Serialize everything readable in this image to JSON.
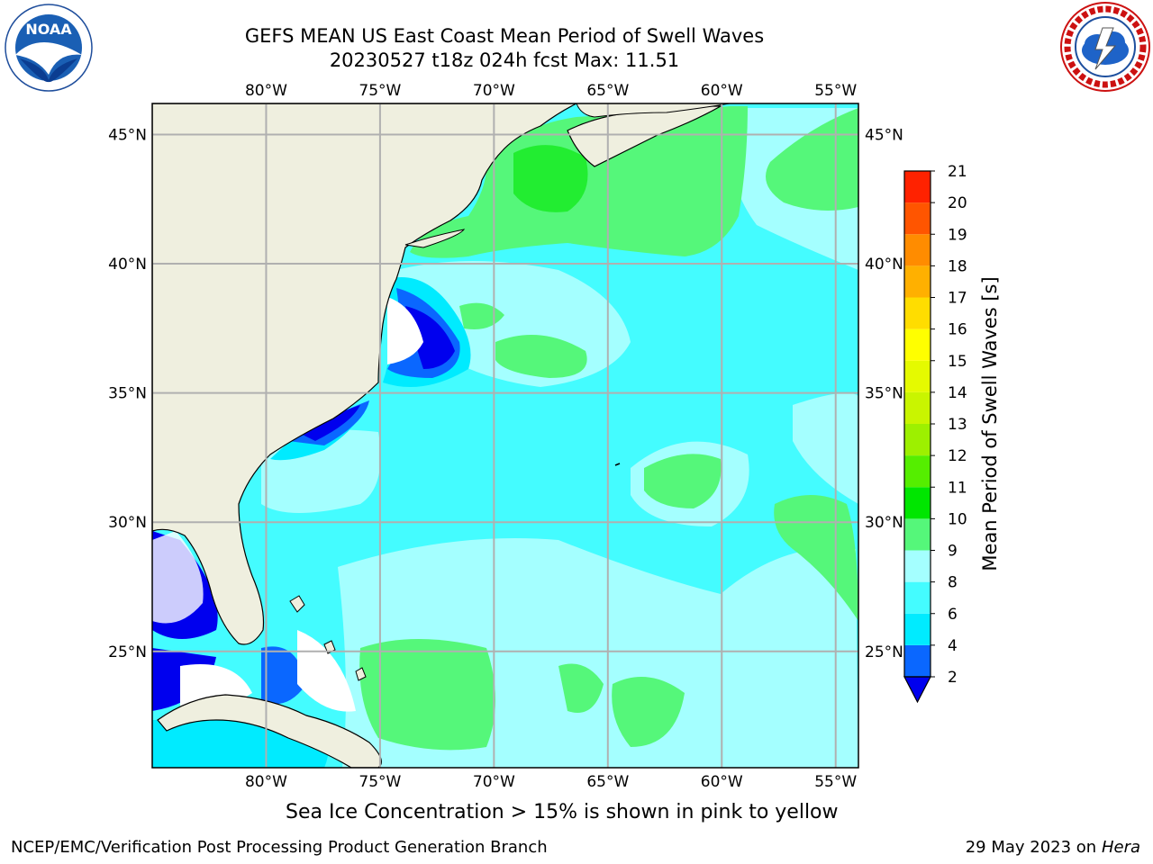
{
  "header": {
    "title_line1": "GEFS MEAN US East Coast Mean Period of Swell Waves",
    "title_line2": "20230527 t18z 024h fcst   Max: 11.51"
  },
  "logos": {
    "left": "NOAA",
    "left_ring_text": "NATIONAL OCEANIC AND ATMOSPHERIC ADMINISTRATION · U.S. DEPARTMENT OF COMMERCE",
    "right_ring_text": "NATIONAL WEATHER SERVICE"
  },
  "map": {
    "lon_labels": [
      "80°W",
      "75°W",
      "70°W",
      "65°W",
      "60°W",
      "55°W"
    ],
    "lat_labels": [
      "45°N",
      "40°N",
      "35°N",
      "30°N",
      "25°N"
    ],
    "lon_range": [
      -85,
      -54
    ],
    "lat_range": [
      20.5,
      46.2
    ]
  },
  "colorbar": {
    "label": "Mean Period of Swell Waves [s]",
    "ticks": [
      "2",
      "4",
      "6",
      "8",
      "9",
      "10",
      "11",
      "12",
      "13",
      "14",
      "15",
      "16",
      "17",
      "18",
      "19",
      "20",
      "21"
    ],
    "colors": [
      "#0a67ff",
      "#00ebff",
      "#44fcff",
      "#a4ffff",
      "#55f77a",
      "#00e600",
      "#55ee00",
      "#9df000",
      "#c9f500",
      "#e5fa00",
      "#ffff00",
      "#ffdd00",
      "#ffb000",
      "#ff8c00",
      "#ff5500",
      "#ff2200"
    ],
    "under_color": "#0000ee"
  },
  "caption": "Sea Ice Concentration > 15% is shown in pink to yellow",
  "footer": {
    "left": "NCEP/EMC/Verification Post Processing Product Generation Branch",
    "right_date": "29 May 2023 on",
    "right_host": "Hera"
  }
}
